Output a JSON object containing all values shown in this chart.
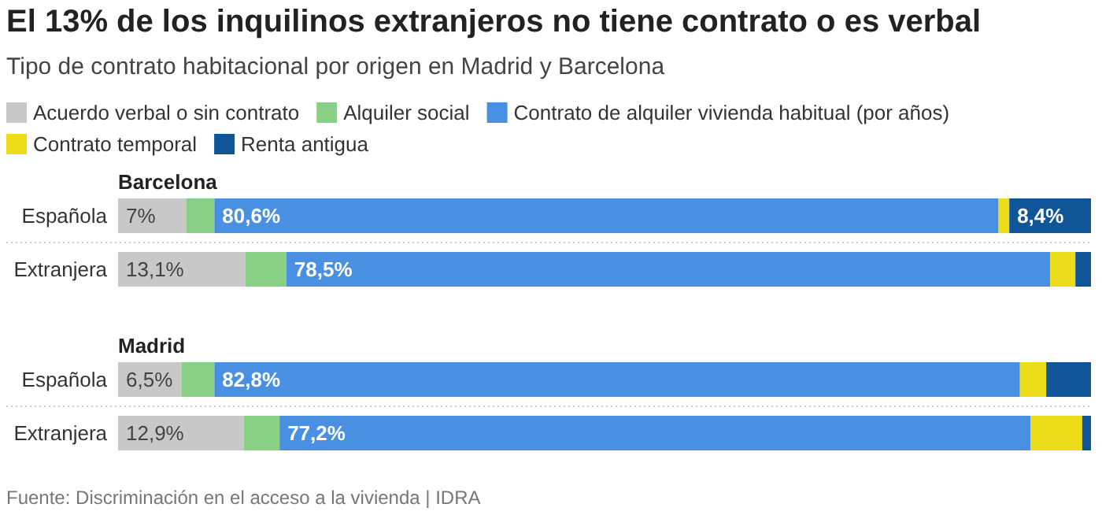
{
  "chart_data": [
    {
      "type": "bar",
      "orientation": "horizontal",
      "stacked": true,
      "title": "El 13% de los inquilinos extranjeros no tiene contrato o es verbal",
      "subtitle": "Tipo de contrato habitacional por origen en Madrid y Barcelona",
      "legend_title": "Barcelona",
      "legend": "top",
      "tick_labels": "y",
      "xlim": [
        0,
        100
      ],
      "categories": [
        "Española",
        "Extranjera"
      ],
      "series": [
        {
          "name": "Acuerdo verbal o sin contrato",
          "color": "#c8c8c8",
          "values": [
            7,
            13.1
          ],
          "value_labels": [
            "7%",
            "13,1%"
          ]
        },
        {
          "name": "Alquiler social",
          "color": "#8acf86",
          "values": [
            2.9,
            4.2
          ],
          "value_labels": [
            null,
            null
          ]
        },
        {
          "name": "Contrato de alquiler vivienda habitual (por años)",
          "color": "#4a90e2",
          "values": [
            80.6,
            78.5
          ],
          "value_labels": [
            "80,6%",
            "78,5%"
          ]
        },
        {
          "name": "Contrato temporal",
          "color": "#ecdc1a",
          "values": [
            1.1,
            2.6
          ],
          "value_labels": [
            null,
            null
          ]
        },
        {
          "name": "Renta antigua",
          "color": "#0f5597",
          "values": [
            8.4,
            1.6
          ],
          "value_labels": [
            "8,4%",
            null
          ]
        }
      ]
    },
    {
      "type": "bar",
      "orientation": "horizontal",
      "stacked": true,
      "legend_title": "Madrid",
      "tick_labels": "y",
      "xlim": [
        0,
        100
      ],
      "categories": [
        "Española",
        "Extranjera"
      ],
      "annotations": [
        "Fuente: Discriminación en el acceso a la vivienda | IDRA"
      ],
      "series": [
        {
          "color": "#c8c8c8",
          "values": [
            6.5,
            12.9
          ],
          "value_labels": [
            "6,5%",
            "12,9%"
          ]
        },
        {
          "color": "#8acf86",
          "values": [
            3.4,
            3.7
          ],
          "value_labels": [
            null,
            null
          ]
        },
        {
          "color": "#4a90e2",
          "values": [
            82.8,
            77.2
          ],
          "value_labels": [
            "82,8%",
            "77,2%"
          ]
        },
        {
          "color": "#ecdc1a",
          "values": [
            2.7,
            5.3
          ],
          "value_labels": [
            null,
            null
          ]
        },
        {
          "color": "#0f5597",
          "values": [
            4.6,
            0.9
          ],
          "value_labels": [
            null,
            null
          ]
        }
      ]
    }
  ]
}
